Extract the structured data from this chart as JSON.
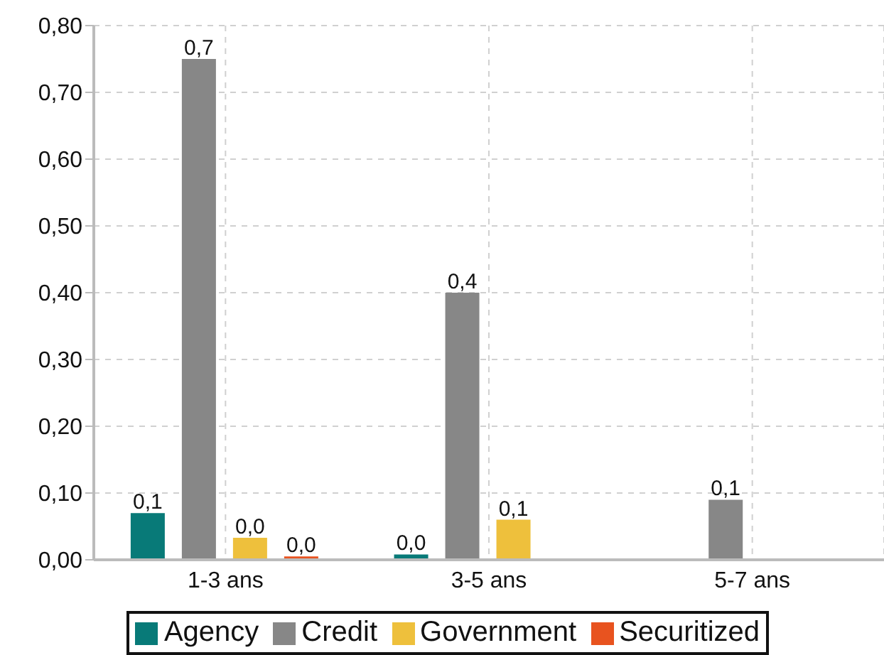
{
  "chart_data": {
    "type": "bar",
    "categories": [
      "1-3 ans",
      "3-5 ans",
      "5-7 ans"
    ],
    "series": [
      {
        "name": "Agency",
        "color": "#087a78",
        "values": [
          0.07,
          0.008,
          null
        ],
        "value_labels": [
          "0,1",
          "0,0",
          null
        ]
      },
      {
        "name": "Credit",
        "color": "#878787",
        "values": [
          0.75,
          0.4,
          0.09
        ],
        "value_labels": [
          "0,7",
          "0,4",
          "0,1"
        ]
      },
      {
        "name": "Government",
        "color": "#eec03c",
        "values": [
          0.033,
          0.06,
          null
        ],
        "value_labels": [
          "0,0",
          "0,1",
          null
        ]
      },
      {
        "name": "Securitized",
        "color": "#e8531f",
        "values": [
          0.005,
          null,
          null
        ],
        "value_labels": [
          "0,0",
          null,
          null
        ]
      }
    ],
    "ylim": [
      0,
      0.8
    ],
    "yticks": [
      {
        "value": 0,
        "label": "0,00"
      },
      {
        "value": 0.1,
        "label": "0,10"
      },
      {
        "value": 0.2,
        "label": "0,20"
      },
      {
        "value": 0.3,
        "label": "0,30"
      },
      {
        "value": 0.4,
        "label": "0,40"
      },
      {
        "value": 0.5,
        "label": "0,50"
      },
      {
        "value": 0.6,
        "label": "0,60"
      },
      {
        "value": 0.7,
        "label": "0,70"
      },
      {
        "value": 0.8,
        "label": "0,80"
      }
    ],
    "grid": true,
    "legend": "bottom"
  }
}
